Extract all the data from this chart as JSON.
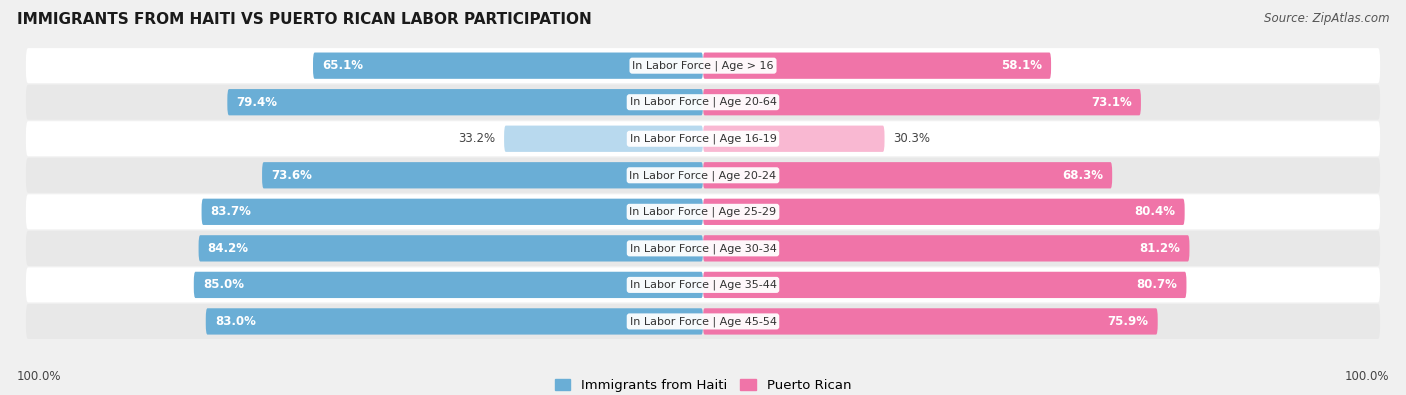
{
  "title": "IMMIGRANTS FROM HAITI VS PUERTO RICAN LABOR PARTICIPATION",
  "source": "Source: ZipAtlas.com",
  "categories": [
    "In Labor Force | Age > 16",
    "In Labor Force | Age 20-64",
    "In Labor Force | Age 16-19",
    "In Labor Force | Age 20-24",
    "In Labor Force | Age 25-29",
    "In Labor Force | Age 30-34",
    "In Labor Force | Age 35-44",
    "In Labor Force | Age 45-54"
  ],
  "haiti_values": [
    65.1,
    79.4,
    33.2,
    73.6,
    83.7,
    84.2,
    85.0,
    83.0
  ],
  "puerto_rican_values": [
    58.1,
    73.1,
    30.3,
    68.3,
    80.4,
    81.2,
    80.7,
    75.9
  ],
  "haiti_color": "#6aaed6",
  "haiti_color_light": "#b8d9ee",
  "puerto_rican_color": "#f074a8",
  "puerto_rican_color_light": "#f9b8d2",
  "max_value": 100.0,
  "background_color": "#f0f0f0",
  "row_bg_even": "#ffffff",
  "row_bg_odd": "#e8e8e8",
  "legend_haiti": "Immigrants from Haiti",
  "legend_puerto_rican": "Puerto Rican",
  "bottom_left_label": "100.0%",
  "bottom_right_label": "100.0%"
}
